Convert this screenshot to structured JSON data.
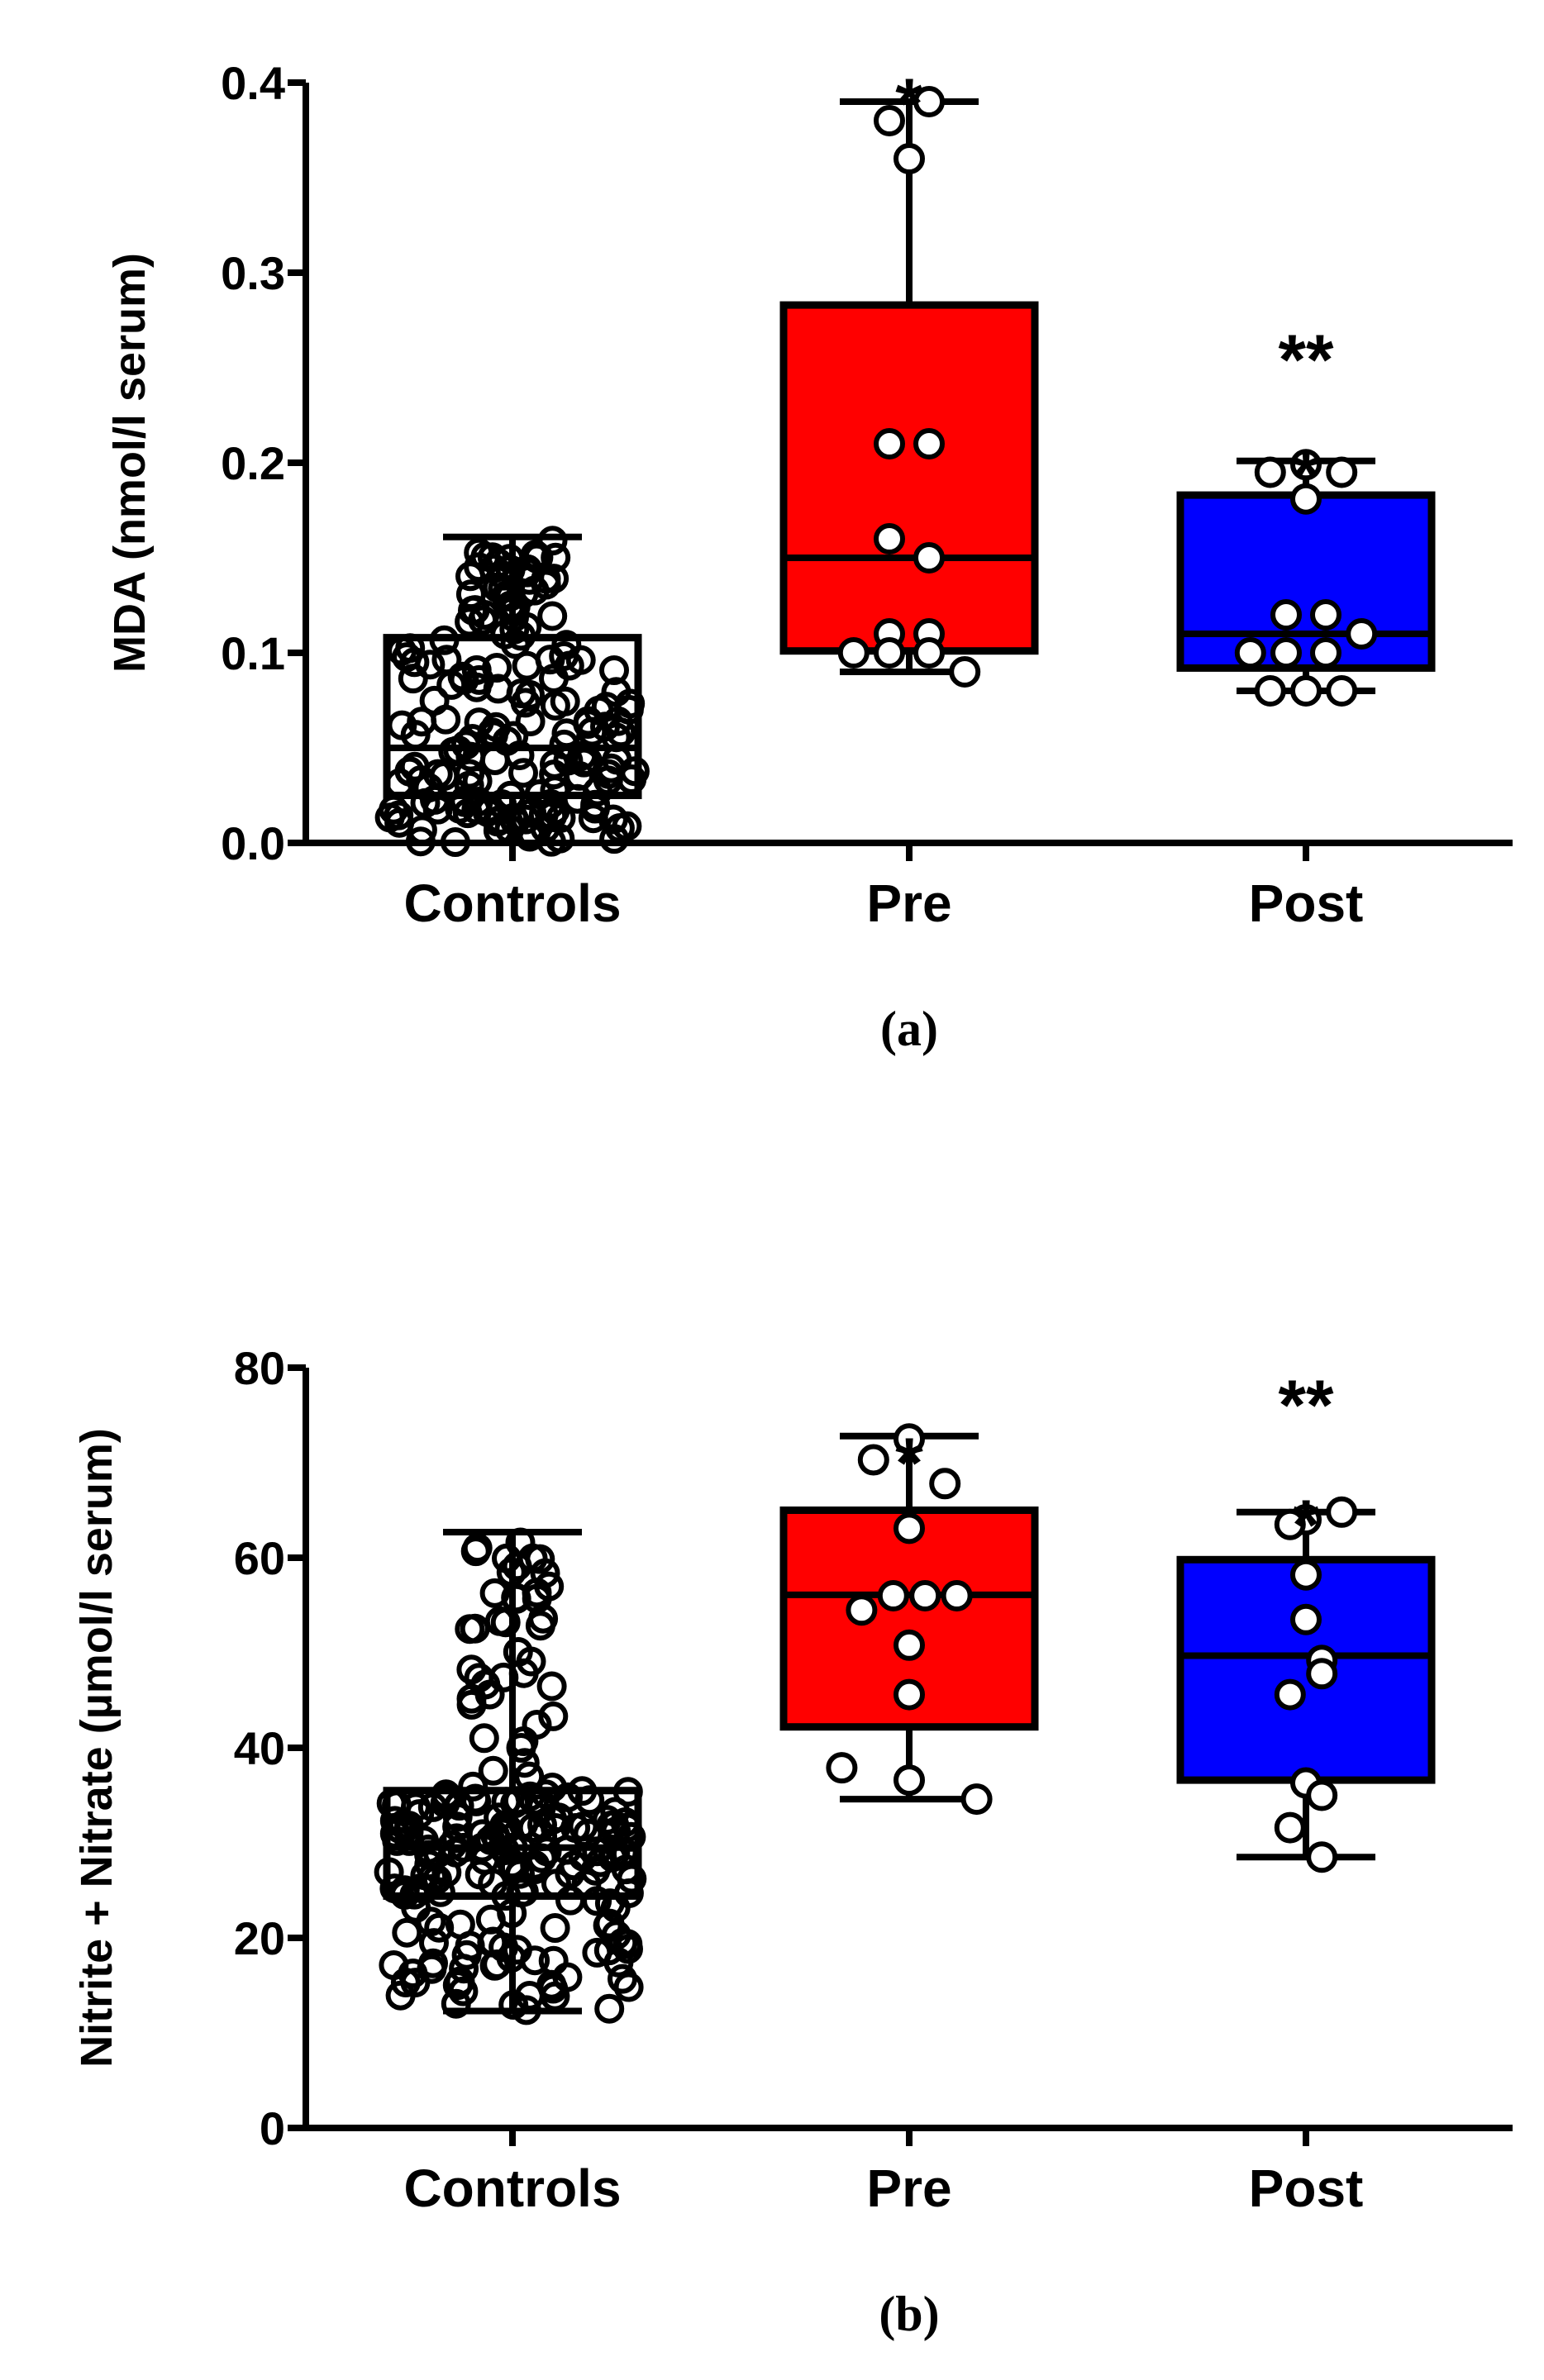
{
  "chart_data": [
    {
      "id": "a",
      "type": "box",
      "caption": "(a)",
      "ylabel": "MDA (nmol/l serum)",
      "xlabel": "",
      "ylim": [
        0.0,
        0.4
      ],
      "yticks": [
        0.0,
        0.1,
        0.2,
        0.3,
        0.4
      ],
      "ytick_labels": [
        "0.0",
        "0.1",
        "0.2",
        "0.3",
        "0.4"
      ],
      "categories": [
        "Controls",
        "Pre",
        "Post"
      ],
      "boxes": [
        {
          "name": "Controls",
          "color": "#ffffff",
          "min": 0.0,
          "q1": 0.025,
          "median": 0.05,
          "q3": 0.108,
          "max": 0.161,
          "annotations": []
        },
        {
          "name": "Pre",
          "color": "#ff0000",
          "min": 0.09,
          "q1": 0.101,
          "median": 0.15,
          "q3": 0.283,
          "max": 0.39,
          "annotations": [
            "*"
          ]
        },
        {
          "name": "Post",
          "color": "#0000ff",
          "min": 0.08,
          "q1": 0.092,
          "median": 0.11,
          "q3": 0.183,
          "max": 0.201,
          "annotations": [
            "**",
            "*"
          ]
        }
      ],
      "points": [
        [],
        [
          {
            "dx": -0.05,
            "y": 0.38
          },
          {
            "dx": 0.05,
            "y": 0.39
          },
          {
            "dx": 0.0,
            "y": 0.36
          },
          {
            "dx": -0.05,
            "y": 0.21
          },
          {
            "dx": 0.05,
            "y": 0.21
          },
          {
            "dx": -0.05,
            "y": 0.16
          },
          {
            "dx": 0.05,
            "y": 0.15
          },
          {
            "dx": -0.05,
            "y": 0.11
          },
          {
            "dx": 0.05,
            "y": 0.11
          },
          {
            "dx": -0.14,
            "y": 0.1
          },
          {
            "dx": -0.05,
            "y": 0.1
          },
          {
            "dx": 0.05,
            "y": 0.1
          },
          {
            "dx": 0.14,
            "y": 0.09
          }
        ],
        [
          {
            "dx": -0.09,
            "y": 0.195
          },
          {
            "dx": 0.0,
            "y": 0.199
          },
          {
            "dx": 0.09,
            "y": 0.195
          },
          {
            "dx": 0.0,
            "y": 0.181
          },
          {
            "dx": -0.05,
            "y": 0.12
          },
          {
            "dx": 0.05,
            "y": 0.12
          },
          {
            "dx": -0.14,
            "y": 0.1
          },
          {
            "dx": -0.05,
            "y": 0.1
          },
          {
            "dx": 0.05,
            "y": 0.1
          },
          {
            "dx": 0.14,
            "y": 0.11
          },
          {
            "dx": -0.09,
            "y": 0.08
          },
          {
            "dx": 0.0,
            "y": 0.08
          },
          {
            "dx": 0.09,
            "y": 0.08
          }
        ]
      ]
    },
    {
      "id": "b",
      "type": "box",
      "caption": "(b)",
      "ylabel": "Nitrite + Nitrate (µmol/l serum)",
      "xlabel": "",
      "ylim": [
        0,
        80
      ],
      "yticks": [
        0,
        20,
        40,
        60,
        80
      ],
      "ytick_labels": [
        "0",
        "20",
        "40",
        "60",
        "80"
      ],
      "categories": [
        "Controls",
        "Pre",
        "Post"
      ],
      "boxes": [
        {
          "name": "Controls",
          "color": "#ffffff",
          "min": 12.3,
          "q1": 24.4,
          "median": 29.5,
          "q3": 35.5,
          "max": 62.7,
          "annotations": []
        },
        {
          "name": "Pre",
          "color": "#ff0000",
          "min": 34.6,
          "q1": 42.2,
          "median": 56.1,
          "q3": 65.0,
          "max": 72.8,
          "annotations": [
            "*"
          ]
        },
        {
          "name": "Post",
          "color": "#0000ff",
          "min": 28.5,
          "q1": 36.6,
          "median": 49.7,
          "q3": 59.8,
          "max": 64.8,
          "annotations": [
            "**",
            "*"
          ]
        }
      ],
      "points": [
        [],
        [
          {
            "dx": 0.0,
            "y": 72.5
          },
          {
            "dx": -0.09,
            "y": 70.3
          },
          {
            "dx": 0.09,
            "y": 67.8
          },
          {
            "dx": 0.0,
            "y": 63.1
          },
          {
            "dx": 0.04,
            "y": 56.0
          },
          {
            "dx": 0.12,
            "y": 56.0
          },
          {
            "dx": -0.12,
            "y": 54.5
          },
          {
            "dx": -0.04,
            "y": 56.0
          },
          {
            "dx": 0.0,
            "y": 50.8
          },
          {
            "dx": 0.0,
            "y": 45.6
          },
          {
            "dx": -0.17,
            "y": 37.9
          },
          {
            "dx": 0.0,
            "y": 36.6
          },
          {
            "dx": 0.17,
            "y": 34.6
          }
        ],
        [
          {
            "dx": 0.09,
            "y": 64.8
          },
          {
            "dx": 0.0,
            "y": 64.0
          },
          {
            "dx": -0.04,
            "y": 63.5
          },
          {
            "dx": 0.0,
            "y": 58.2
          },
          {
            "dx": 0.0,
            "y": 53.5
          },
          {
            "dx": 0.04,
            "y": 49.2
          },
          {
            "dx": 0.04,
            "y": 47.8
          },
          {
            "dx": -0.04,
            "y": 45.6
          },
          {
            "dx": 0.0,
            "y": 36.3
          },
          {
            "dx": 0.04,
            "y": 35.0
          },
          {
            "dx": -0.04,
            "y": 31.6
          },
          {
            "dx": 0.04,
            "y": 28.5
          }
        ]
      ]
    }
  ]
}
